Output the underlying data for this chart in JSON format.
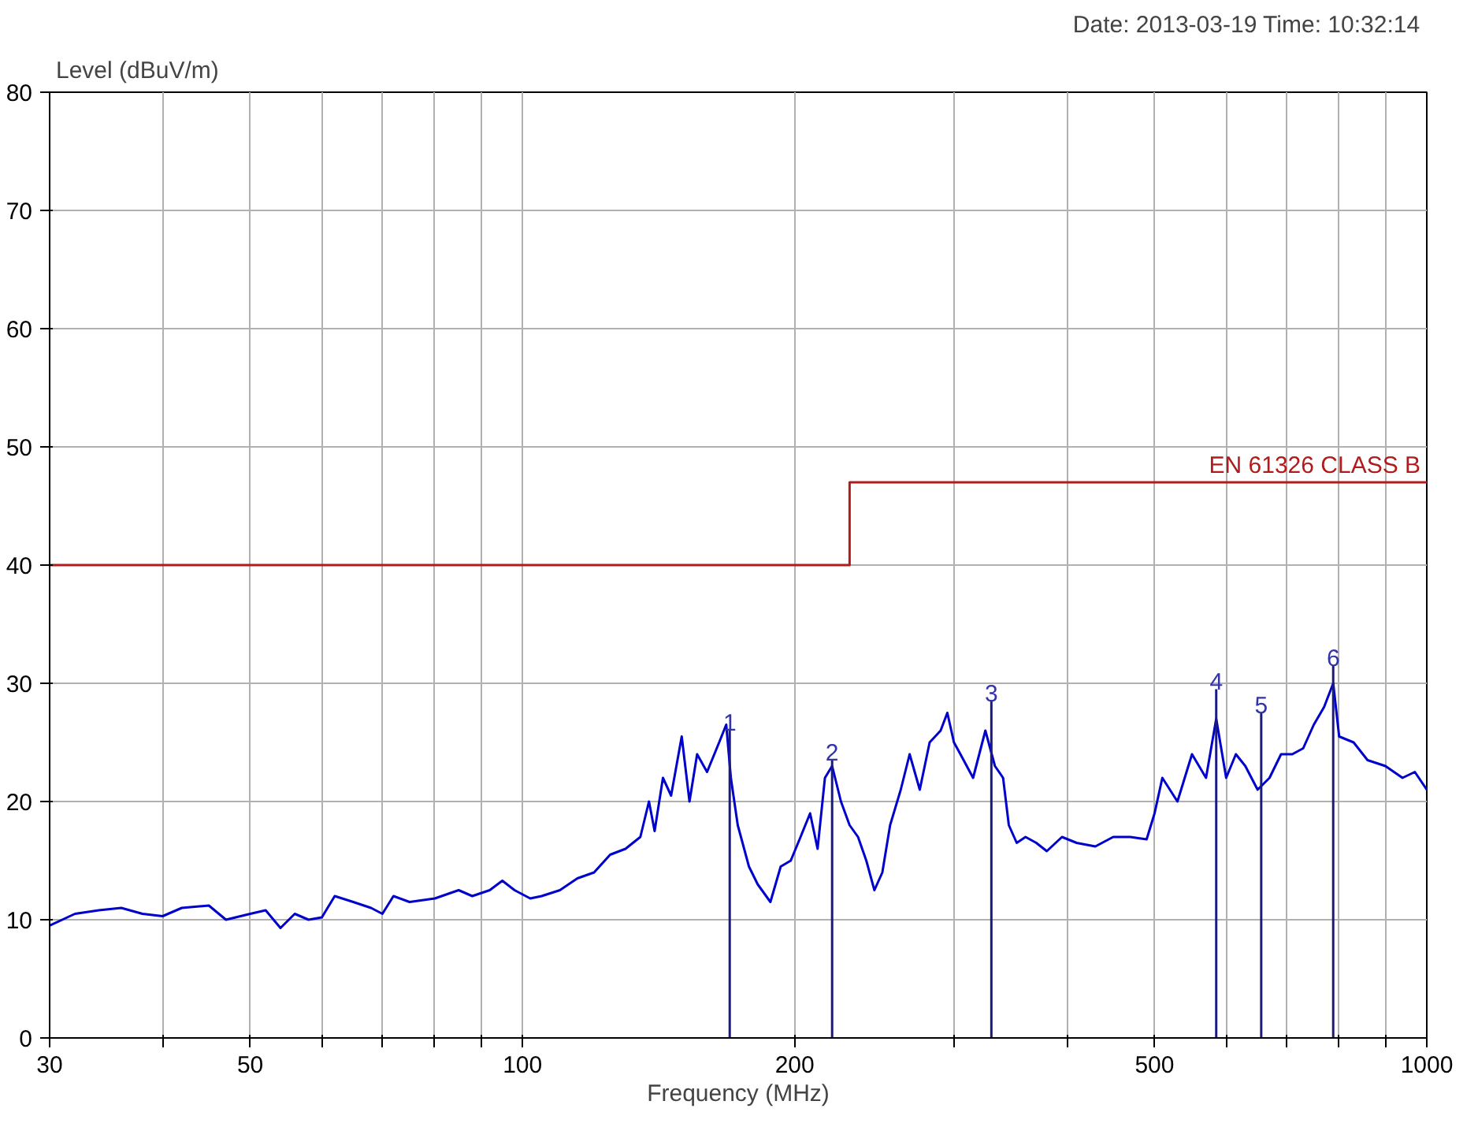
{
  "chart_data": {
    "type": "line",
    "xlabel": "Frequency (MHz)",
    "ylabel": "Level (dBuV/m)",
    "log": "x",
    "grid": true,
    "legend": false,
    "marker": "none",
    "line_style": "solid",
    "xlim": [
      30,
      1000
    ],
    "ylim": [
      0,
      80
    ],
    "xticks": [
      30,
      {
        "value": 40,
        "label": null
      },
      50,
      {
        "value": 60,
        "label": null
      },
      {
        "value": 70,
        "label": null
      },
      {
        "value": 80,
        "label": null
      },
      {
        "value": 90,
        "label": null
      },
      100,
      200,
      {
        "value": 300,
        "label": null
      },
      {
        "value": 400,
        "label": null
      },
      500,
      {
        "value": 600,
        "label": null
      },
      {
        "value": 700,
        "label": null
      },
      {
        "value": 800,
        "label": null
      },
      {
        "value": 900,
        "label": null
      },
      1000
    ],
    "yticks": [
      0,
      10,
      20,
      30,
      40,
      50,
      60,
      70,
      80
    ],
    "annotations": [
      "Date: 2013-03-19  Time: 10:32:14",
      {
        "text": "1",
        "x": 169.5,
        "y": 26
      },
      {
        "text": "2",
        "x": 220,
        "y": 23.5
      },
      {
        "text": "3",
        "x": 330,
        "y": 28.5
      },
      {
        "text": "4",
        "x": 585,
        "y": 29.5
      },
      {
        "text": "5",
        "x": 656,
        "y": 27.5
      },
      {
        "text": "6",
        "x": 788,
        "y": 31.5
      }
    ],
    "series": [
      {
        "color": "#0000cc",
        "x": [
          30,
          32,
          34,
          36,
          38,
          40,
          42,
          45,
          47,
          50,
          52,
          54,
          56,
          58,
          60,
          62,
          65,
          68,
          70,
          72,
          75,
          80,
          85,
          88,
          92,
          95,
          98,
          102,
          105,
          110,
          115,
          120,
          125,
          130,
          135,
          138,
          140,
          143,
          146,
          150,
          153,
          156,
          160,
          165,
          168,
          170,
          173,
          178,
          182,
          188,
          193,
          198,
          203,
          208,
          212,
          216,
          220,
          225,
          230,
          235,
          240,
          245,
          250,
          255,
          262,
          268,
          275,
          282,
          290,
          295,
          300,
          305,
          315,
          325,
          333,
          340,
          345,
          352,
          360,
          370,
          380,
          395,
          410,
          430,
          450,
          470,
          490,
          500,
          510,
          530,
          550,
          570,
          585,
          600,
          615,
          630,
          650,
          670,
          690,
          710,
          730,
          750,
          770,
          788,
          800,
          830,
          860,
          900,
          940,
          970,
          1000
        ],
        "values": [
          9.5,
          10.5,
          10.8,
          11,
          10.5,
          10.3,
          11,
          11.2,
          10,
          10.5,
          10.8,
          9.3,
          10.5,
          10,
          10.2,
          12,
          11.5,
          11,
          10.5,
          12,
          11.5,
          11.8,
          12.5,
          12,
          12.5,
          13.3,
          12.5,
          11.8,
          12,
          12.5,
          13.5,
          14,
          15.5,
          16,
          17,
          20,
          17.5,
          22,
          20.5,
          25.5,
          20,
          24,
          22.5,
          25,
          26.5,
          22,
          18,
          14.5,
          13,
          11.5,
          14.5,
          15,
          17,
          19,
          16,
          22,
          23,
          20,
          18,
          17,
          15,
          12.5,
          14,
          18,
          21,
          24,
          21,
          25,
          26,
          27.5,
          25,
          24,
          22,
          26,
          23,
          22,
          18,
          16.5,
          17,
          16.5,
          15.8,
          17,
          16.5,
          16.2,
          17,
          17,
          16.8,
          19,
          22,
          20,
          24,
          22,
          27,
          22,
          24,
          23,
          21,
          22,
          24,
          24,
          24.5,
          26.5,
          28,
          30,
          25.5,
          25,
          23.5,
          23,
          22,
          22.5,
          21
        ]
      },
      {
        "type": "line",
        "name": "EN 61326 CLASS B",
        "color": "#b01c1c",
        "x": [
          30,
          230,
          230,
          1000
        ],
        "values": [
          40,
          40,
          47,
          47
        ]
      },
      {
        "type": "line",
        "color": "#1a1a80",
        "x": [
          169.5,
          169.5
        ],
        "values": [
          0,
          26
        ]
      },
      {
        "type": "line",
        "color": "#1a1a80",
        "x": [
          220,
          220
        ],
        "values": [
          0,
          23.5
        ]
      },
      {
        "type": "line",
        "color": "#1a1a80",
        "x": [
          330,
          330
        ],
        "values": [
          0,
          28.5
        ]
      },
      {
        "type": "line",
        "color": "#1a1a80",
        "x": [
          585,
          585
        ],
        "values": [
          0,
          29.5
        ]
      },
      {
        "type": "line",
        "color": "#1a1a80",
        "x": [
          656,
          656
        ],
        "values": [
          0,
          27.5
        ]
      },
      {
        "type": "line",
        "color": "#1a1a80",
        "x": [
          788,
          788
        ],
        "values": [
          0,
          31.5
        ]
      }
    ]
  }
}
